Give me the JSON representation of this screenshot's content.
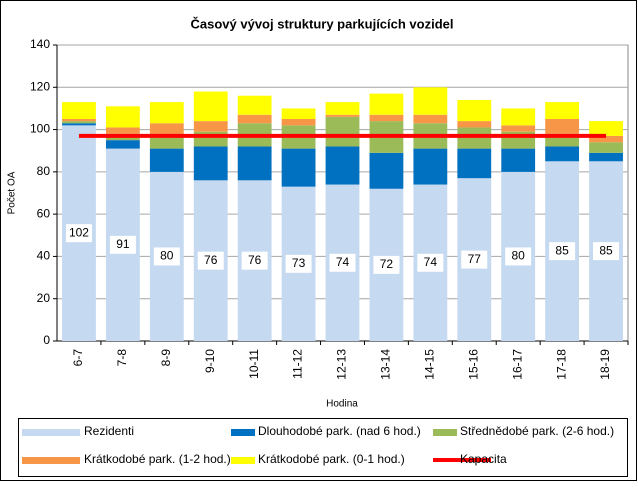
{
  "chart_data": {
    "type": "bar",
    "stacked": true,
    "title": "Časový vývoj struktury parkujících vozidel",
    "xlabel": "Hodina",
    "ylabel": "Počet OA",
    "categories": [
      "6-7",
      "7-8",
      "8-9",
      "9-10",
      "10-11",
      "11-12",
      "12-13",
      "13-14",
      "14-15",
      "15-16",
      "16-17",
      "17-18",
      "18-19"
    ],
    "ylim": [
      0,
      140
    ],
    "yticks": [
      0,
      20,
      40,
      60,
      80,
      100,
      120,
      140
    ],
    "grid": true,
    "series": [
      {
        "name": "Rezidenti",
        "color": "#c5d9f1",
        "data_labels": true,
        "values": [
          102,
          91,
          80,
          76,
          76,
          73,
          74,
          72,
          74,
          77,
          80,
          85,
          85
        ]
      },
      {
        "name": "Dlouhodobé park. (nad 6 hod.)",
        "color": "#0070c0",
        "values": [
          1,
          4,
          11,
          16,
          16,
          18,
          18,
          17,
          17,
          14,
          11,
          7,
          4
        ]
      },
      {
        "name": "Střednědobé park. (2-6 hod.)",
        "color": "#9bbb59",
        "values": [
          1,
          3,
          6,
          7,
          11,
          11,
          14,
          15,
          12,
          10,
          8,
          6,
          5
        ]
      },
      {
        "name": "Krátkodobé park. (1-2 hod.)",
        "color": "#f79646",
        "values": [
          1,
          3,
          6,
          5,
          4,
          3,
          1,
          3,
          4,
          3,
          3,
          7,
          3
        ]
      },
      {
        "name": "Krátkodobé park. (0-1 hod.)",
        "color": "#ffff00",
        "values": [
          8,
          10,
          10,
          14,
          9,
          5,
          6,
          10,
          13,
          10,
          8,
          8,
          7
        ]
      },
      {
        "name": "Kapacita",
        "color": "#ff0000",
        "type": "line",
        "values": [
          97,
          97,
          97,
          97,
          97,
          97,
          97,
          97,
          97,
          97,
          97,
          97,
          97
        ]
      }
    ]
  }
}
